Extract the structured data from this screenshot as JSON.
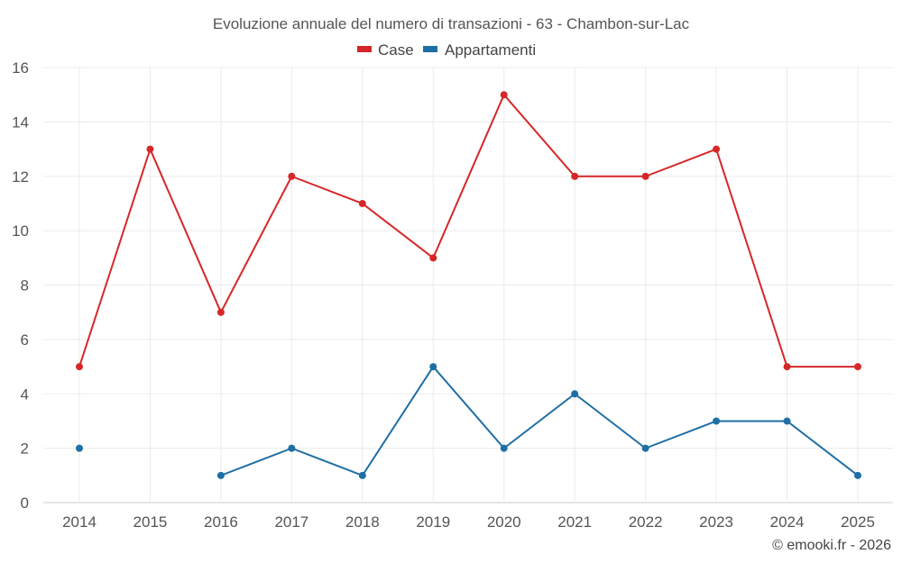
{
  "chart_data": {
    "type": "line",
    "title": "Evoluzione annuale del numero di transazioni - 63 - Chambon-sur-Lac",
    "categories": [
      "2014",
      "2015",
      "2016",
      "2017",
      "2018",
      "2019",
      "2020",
      "2021",
      "2022",
      "2023",
      "2024",
      "2025"
    ],
    "series": [
      {
        "name": "Case",
        "color": "#d62728",
        "values": [
          5,
          13,
          7,
          12,
          11,
          9,
          15,
          12,
          12,
          13,
          5,
          5
        ]
      },
      {
        "name": "Appartamenti",
        "color": "#1f6fa5",
        "values": [
          2,
          null,
          1,
          2,
          1,
          5,
          2,
          4,
          2,
          3,
          3,
          1
        ]
      }
    ],
    "ylim": [
      0,
      16
    ],
    "yticks": [
      0,
      2,
      4,
      6,
      8,
      10,
      12,
      14,
      16
    ],
    "grid": true,
    "legend_position": "top-center",
    "xlabel": "",
    "ylabel": ""
  },
  "credit": "© emooki.fr - 2026"
}
